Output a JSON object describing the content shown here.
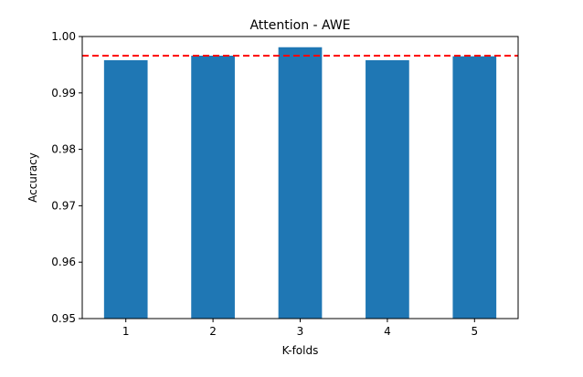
{
  "chart_data": {
    "type": "bar",
    "title": "Attention - AWE",
    "xlabel": "K-folds",
    "ylabel": "Accuracy",
    "categories": [
      "1",
      "2",
      "3",
      "4",
      "5"
    ],
    "values": [
      0.9958,
      0.9966,
      0.9981,
      0.9958,
      0.9965
    ],
    "ylim": [
      0.95,
      1.0
    ],
    "yticks": [
      "0.95",
      "0.96",
      "0.97",
      "0.98",
      "0.99",
      "1.00"
    ],
    "reference_line": {
      "value": 0.9966,
      "style": "dashed",
      "color": "#ff0000"
    },
    "bar_color": "#1f77b4",
    "grid": false,
    "legend": false
  }
}
